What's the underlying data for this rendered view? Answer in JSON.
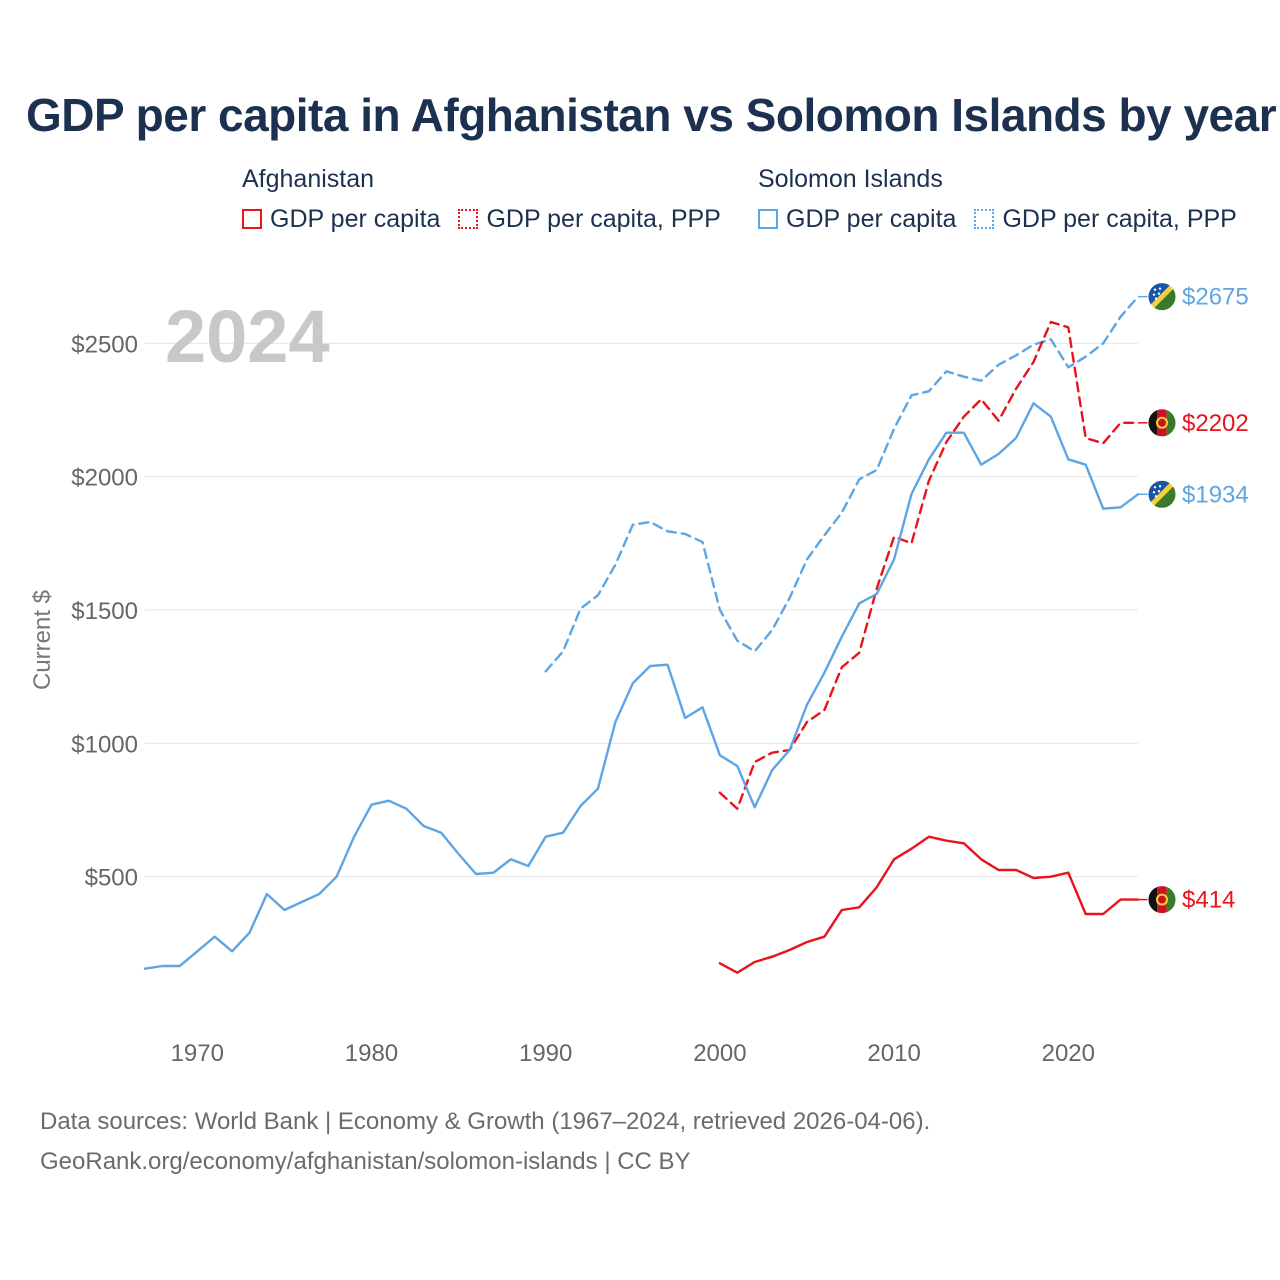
{
  "title": "GDP per capita in Afghanistan vs Solomon Islands by year",
  "legend": {
    "groups": [
      {
        "name": "Afghanistan",
        "color": "#e8141c",
        "items": [
          {
            "label": "GDP per capita",
            "style": "solid"
          },
          {
            "label": "GDP per capita, PPP",
            "style": "dotted"
          }
        ]
      },
      {
        "name": "Solomon Islands",
        "color": "#5ea5e4",
        "items": [
          {
            "label": "GDP per capita",
            "style": "solid"
          },
          {
            "label": "GDP per capita, PPP",
            "style": "dotted"
          }
        ]
      }
    ]
  },
  "footer": {
    "line1": "Data sources: World Bank | Economy & Growth (1967–2024, retrieved 2026-04-06).",
    "line2": "GeoRank.org/economy/afghanistan/solomon-islands | CC BY"
  },
  "chart_data": {
    "type": "line",
    "year_label": "2024",
    "ylabel": "Current $",
    "xlim": [
      1967,
      2024
    ],
    "ylim": [
      0,
      2700
    ],
    "x_ticks": [
      1970,
      1980,
      1990,
      2000,
      2010,
      2020
    ],
    "y_ticks": [
      {
        "value": 500,
        "label": "$500"
      },
      {
        "value": 1000,
        "label": "$1000"
      },
      {
        "value": 1500,
        "label": "$1500"
      },
      {
        "value": 2000,
        "label": "$2000"
      },
      {
        "value": 2500,
        "label": "$2500"
      }
    ],
    "series": [
      {
        "name": "Solomon Islands GDP per capita, PPP",
        "country": "Solomon Islands",
        "color": "#5ea5e4",
        "dash": "dashed",
        "end_label": "$2675",
        "x": [
          1990,
          1991,
          1992,
          1993,
          1994,
          1995,
          1996,
          1997,
          1998,
          1999,
          2000,
          2001,
          2002,
          2003,
          2004,
          2005,
          2006,
          2007,
          2008,
          2009,
          2010,
          2011,
          2012,
          2013,
          2014,
          2015,
          2016,
          2017,
          2018,
          2019,
          2020,
          2021,
          2022,
          2023,
          2024
        ],
        "values": [
          1270,
          1345,
          1505,
          1555,
          1670,
          1820,
          1830,
          1795,
          1785,
          1755,
          1500,
          1385,
          1345,
          1425,
          1545,
          1690,
          1780,
          1865,
          1990,
          2025,
          2180,
          2305,
          2320,
          2395,
          2375,
          2360,
          2420,
          2455,
          2495,
          2515,
          2410,
          2450,
          2500,
          2600,
          2675
        ]
      },
      {
        "name": "Afghanistan GDP per capita, PPP",
        "country": "Afghanistan",
        "color": "#e8141c",
        "dash": "dashed",
        "end_label": "$2202",
        "x": [
          2000,
          2001,
          2002,
          2003,
          2004,
          2005,
          2006,
          2007,
          2008,
          2009,
          2010,
          2011,
          2012,
          2013,
          2014,
          2015,
          2016,
          2017,
          2018,
          2019,
          2020,
          2021,
          2022,
          2023,
          2024
        ],
        "values": [
          815,
          755,
          930,
          965,
          975,
          1080,
          1125,
          1285,
          1340,
          1580,
          1775,
          1750,
          1985,
          2130,
          2225,
          2290,
          2210,
          2330,
          2430,
          2580,
          2560,
          2145,
          2125,
          2202,
          2202
        ]
      },
      {
        "name": "Solomon Islands GDP per capita",
        "country": "Solomon Islands",
        "color": "#5ea5e4",
        "dash": "solid",
        "end_label": "$1934",
        "x": [
          1967,
          1968,
          1969,
          1970,
          1971,
          1972,
          1973,
          1974,
          1975,
          1976,
          1977,
          1978,
          1979,
          1980,
          1981,
          1982,
          1983,
          1984,
          1985,
          1986,
          1987,
          1988,
          1989,
          1990,
          1991,
          1992,
          1993,
          1994,
          1995,
          1996,
          1997,
          1998,
          1999,
          2000,
          2001,
          2002,
          2003,
          2004,
          2005,
          2006,
          2007,
          2008,
          2009,
          2010,
          2011,
          2012,
          2013,
          2014,
          2015,
          2016,
          2017,
          2018,
          2019,
          2020,
          2021,
          2022,
          2023,
          2024
        ],
        "values": [
          155,
          165,
          165,
          220,
          275,
          220,
          290,
          435,
          375,
          405,
          435,
          500,
          650,
          770,
          785,
          755,
          690,
          665,
          585,
          510,
          515,
          565,
          540,
          650,
          665,
          765,
          830,
          1080,
          1225,
          1290,
          1295,
          1095,
          1135,
          955,
          915,
          760,
          900,
          975,
          1145,
          1265,
          1400,
          1525,
          1560,
          1690,
          1935,
          2065,
          2165,
          2165,
          2045,
          2085,
          2145,
          2275,
          2225,
          2065,
          2045,
          1880,
          1885,
          1934
        ]
      },
      {
        "name": "Afghanistan GDP per capita",
        "country": "Afghanistan",
        "color": "#e8141c",
        "dash": "solid",
        "end_label": "$414",
        "x": [
          2000,
          2001,
          2002,
          2003,
          2004,
          2005,
          2006,
          2007,
          2008,
          2009,
          2010,
          2011,
          2012,
          2013,
          2014,
          2015,
          2016,
          2017,
          2018,
          2019,
          2020,
          2021,
          2022,
          2023,
          2024
        ],
        "values": [
          175,
          140,
          180,
          200,
          225,
          255,
          275,
          375,
          385,
          460,
          565,
          605,
          650,
          635,
          625,
          565,
          525,
          525,
          495,
          500,
          515,
          360,
          360,
          414,
          414
        ]
      }
    ]
  }
}
